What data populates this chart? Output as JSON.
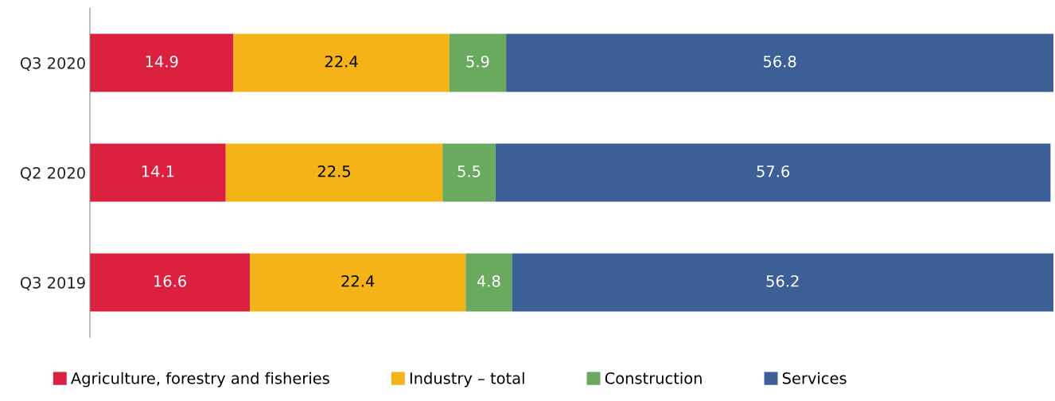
{
  "chart_data": {
    "type": "bar",
    "orientation": "horizontal",
    "stacked": true,
    "categories": [
      "Q3 2020",
      "Q2 2020",
      "Q3 2019"
    ],
    "series": [
      {
        "name": "Agriculture, forestry and fisheries",
        "color": "#dc2140",
        "values": [
          14.9,
          14.1,
          16.6
        ]
      },
      {
        "name": "Industry – total",
        "color": "#f4b316",
        "values": [
          22.4,
          22.5,
          22.4
        ]
      },
      {
        "name": "Construction",
        "color": "#6aaa5e",
        "values": [
          5.9,
          5.5,
          4.8
        ]
      },
      {
        "name": "Services",
        "color": "#3c5f96",
        "values": [
          56.8,
          57.6,
          56.2
        ]
      }
    ],
    "xlim": [
      0,
      100
    ],
    "data_labels": true,
    "legend": "bottom",
    "grid": false,
    "tick_labels": "y"
  }
}
